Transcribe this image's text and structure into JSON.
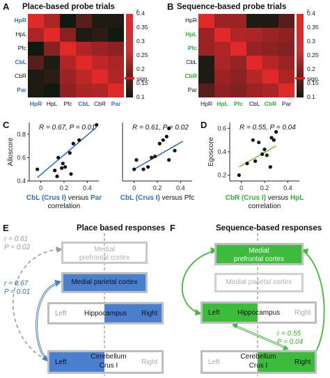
{
  "panels": {
    "A": {
      "letter": "A",
      "title": "Place-based probe trials"
    },
    "B": {
      "letter": "B",
      "title": "Sequence-based probe trials"
    },
    "C": {
      "letter": "C"
    },
    "D": {
      "letter": "D"
    },
    "E": {
      "letter": "E",
      "title": "Place based responses"
    },
    "F": {
      "letter": "F",
      "title": "Sequence-based responses"
    }
  },
  "heatmap_A": {
    "rows": [
      "HpR",
      "HpL",
      "Pfc",
      "CbL",
      "CbR",
      "Par"
    ],
    "cols": [
      "HpR",
      "HpL",
      "Pfc",
      "CbL",
      "CbR",
      "Par"
    ],
    "row_colors": [
      "#2e6fc4",
      "#111111",
      "#111111",
      "#2e6fc4",
      "#111111",
      "#2e6fc4"
    ],
    "col_colors": [
      "#2e6fc4",
      "#111111",
      "#111111",
      "#2e6fc4",
      "#111111",
      "#2e6fc4"
    ],
    "cells": [
      [
        0.4,
        0.32,
        0.1,
        0.2,
        0.12,
        0.12
      ],
      [
        0.32,
        0.4,
        0.27,
        0.12,
        0.14,
        0.1
      ],
      [
        0.1,
        0.27,
        0.4,
        0.33,
        0.3,
        0.28
      ],
      [
        0.2,
        0.12,
        0.33,
        0.4,
        0.35,
        0.32
      ],
      [
        0.12,
        0.14,
        0.3,
        0.35,
        0.4,
        0.33
      ],
      [
        0.12,
        0.1,
        0.28,
        0.32,
        0.33,
        0.4
      ]
    ]
  },
  "heatmap_B": {
    "rows": [
      "HpR",
      "HpL",
      "Pfc",
      "CbL",
      "CbR",
      "Par"
    ],
    "cols": [
      "HpR",
      "HpL",
      "Pfc",
      "CbL",
      "CbR",
      "Par"
    ],
    "row_colors": [
      "#111111",
      "#2fb52f",
      "#2fb52f",
      "#111111",
      "#2fb52f",
      "#111111"
    ],
    "col_colors": [
      "#111111",
      "#2fb52f",
      "#2fb52f",
      "#111111",
      "#2fb52f",
      "#111111"
    ],
    "cells": [
      [
        0.4,
        0.3,
        0.3,
        0.12,
        0.12,
        0.2
      ],
      [
        0.3,
        0.4,
        0.33,
        0.32,
        0.3,
        0.28
      ],
      [
        0.3,
        0.33,
        0.4,
        0.29,
        0.28,
        0.26
      ],
      [
        0.12,
        0.32,
        0.29,
        0.4,
        0.34,
        0.3
      ],
      [
        0.12,
        0.3,
        0.28,
        0.34,
        0.4,
        0.32
      ],
      [
        0.2,
        0.28,
        0.26,
        0.3,
        0.32,
        0.4
      ]
    ]
  },
  "colorbar": {
    "label": "r",
    "ticks": [
      "0.4",
      "0.35",
      "0.3",
      "0.25",
      "0.2",
      "0.15",
      "0.1"
    ],
    "sign_label": "sign.",
    "sign_value": 0.175,
    "min": 0.1,
    "max": 0.4
  },
  "chart_data": [
    {
      "type": "scatter",
      "ylabel": "Alloscore",
      "xlabel_parts": [
        "CbL (Crus I)",
        " versus ",
        "Par"
      ],
      "xlabel_line2": "correlation",
      "annotation": "R = 0.67, P = 0.01",
      "xlim": [
        -0.1,
        0.5
      ],
      "ylim": [
        0.4,
        0.9
      ],
      "xticks": [
        "0",
        "0.2",
        "0.4"
      ],
      "yticks": [
        "0.8",
        "0.6",
        "0.4"
      ],
      "x": [
        -0.03,
        0.12,
        0.14,
        0.18,
        0.19,
        0.21,
        0.15,
        0.25,
        0.28,
        0.33,
        0.48,
        0.26
      ],
      "y": [
        0.5,
        0.49,
        0.44,
        0.51,
        0.55,
        0.52,
        0.6,
        0.64,
        0.72,
        0.75,
        0.88,
        0.46
      ],
      "fit": [
        [
          -0.03,
          0.43
        ],
        [
          0.48,
          0.86
        ]
      ],
      "fit_color": "#2e6fc4"
    },
    {
      "type": "scatter",
      "xlabel_parts": [
        "CbL (Crus I)",
        " versus ",
        "Pfc"
      ],
      "annotation": "R = 0.61, P = 0.02",
      "xlim": [
        -0.1,
        0.5
      ],
      "ylim": [
        0.4,
        0.9
      ],
      "xticks": [
        "0",
        "0.2",
        "0.4"
      ],
      "x": [
        0.0,
        0.02,
        0.08,
        0.12,
        0.15,
        0.18,
        0.22,
        0.25,
        0.28,
        0.3,
        0.35,
        0.3
      ],
      "y": [
        0.5,
        0.58,
        0.5,
        0.52,
        0.6,
        0.61,
        0.72,
        0.75,
        0.78,
        0.85,
        0.66,
        0.58
      ],
      "fit": [
        [
          0.0,
          0.5
        ],
        [
          0.42,
          0.74
        ]
      ],
      "fit_color": "#2e6fc4"
    },
    {
      "type": "scatter",
      "ylabel": "Egoscore",
      "xlabel_parts": [
        "CbR (Crus I)",
        " versus ",
        "HpL"
      ],
      "xlabel_line2": "correlation",
      "annotation": "R = 0.55, P = 0.04",
      "xlim": [
        -0.1,
        0.5
      ],
      "ylim": [
        0.15,
        0.65
      ],
      "xticks": [
        "0",
        "0.2",
        "0.4"
      ],
      "yticks": [
        "0.6",
        "0.4",
        "0.2"
      ],
      "x": [
        -0.02,
        0.05,
        0.1,
        0.12,
        0.15,
        0.18,
        0.22,
        0.26,
        0.28,
        0.3,
        0.25,
        0.2
      ],
      "y": [
        0.2,
        0.3,
        0.5,
        0.32,
        0.48,
        0.38,
        0.37,
        0.52,
        0.5,
        0.57,
        0.27,
        0.42
      ],
      "fit": [
        [
          -0.02,
          0.27
        ],
        [
          0.3,
          0.45
        ]
      ],
      "fit_color": "#7cc142"
    }
  ],
  "panelE": {
    "r_gray": "r = 0.61",
    "p_gray": "P = 0.02",
    "r_blue": "r = 0.67",
    "p_blue": "P = 0.01",
    "medial_pfc": "Medial",
    "medial_pfc2": "prefrontal cortex",
    "parietal": "Medial parietal cortex",
    "left": "Left",
    "hippocampus": "Hippocampus",
    "right": "Right",
    "cereb": "Cerebellum",
    "crus": "Crus I"
  },
  "panelF": {
    "r_green": "r = 0.55",
    "p_green": "P = 0.04",
    "medial_pfc": "Medial",
    "medial_pfc2": "prefrontal cortex",
    "parietal": "Medial parietal cortex",
    "left": "Left",
    "hippocampus": "Hippocampus",
    "right": "Right",
    "cereb": "Cerebellum",
    "crus": "Crus I"
  },
  "colors": {
    "blue": "#4a7fd0",
    "blue_dark": "#2e6fc4",
    "green": "#3dbb3d",
    "gray": "#9a9a9a",
    "gray_box": "#b0b0b0"
  }
}
